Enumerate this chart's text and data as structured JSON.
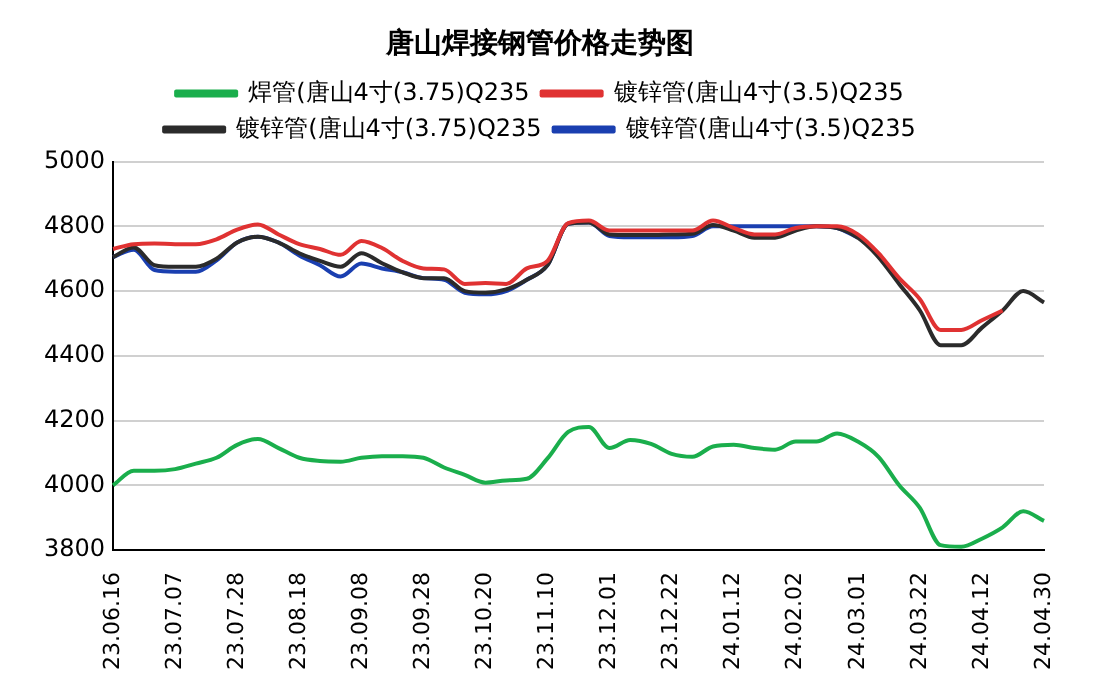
{
  "chart_data": {
    "type": "line",
    "title": "唐山焊接钢管价格走势图",
    "categories": [
      "23.06.16",
      null,
      null,
      "23.07.07",
      null,
      null,
      "23.07.28",
      null,
      null,
      "23.08.18",
      null,
      null,
      "23.09.08",
      null,
      null,
      "23.09.28",
      null,
      null,
      "23.10.20",
      null,
      null,
      "23.11.10",
      null,
      null,
      "23.12.01",
      null,
      null,
      "23.12.22",
      null,
      null,
      "24.01.12",
      null,
      null,
      "24.02.02",
      null,
      null,
      "24.03.01",
      null,
      null,
      "24.03.22",
      null,
      null,
      "24.04.12",
      null,
      null,
      "24.04.30"
    ],
    "series": [
      {
        "name": "焊管(唐山4寸(3.75)Q235",
        "color": "#1aae4c",
        "values": [
          4000,
          4045,
          4045,
          4050,
          4067,
          4085,
          4125,
          4143,
          4115,
          4085,
          4075,
          4073,
          4085,
          4090,
          4090,
          4085,
          4055,
          4032,
          4008,
          4015,
          4020,
          4083,
          4165,
          4180,
          4115,
          4140,
          4128,
          4097,
          4088,
          4120,
          4125,
          4115,
          4110,
          4135,
          4135,
          4160,
          4135,
          4088,
          4000,
          3930,
          3815,
          3810,
          3835,
          3870,
          3920,
          3890
        ]
      },
      {
        "name": "镀锌管(唐山4寸(3.5)Q235",
        "color": "#e03232",
        "values": [
          4730,
          4745,
          4747,
          4745,
          4745,
          4760,
          4790,
          4806,
          4775,
          4745,
          4730,
          4712,
          4755,
          4733,
          4693,
          4670,
          4667,
          4622,
          4625,
          4622,
          4670,
          4693,
          4810,
          4818,
          4787,
          4787,
          4787,
          4787,
          4787,
          4818,
          4795,
          4775,
          4775,
          4795,
          4800,
          4800,
          4775,
          4717,
          4640,
          4575,
          4480,
          4480,
          4510,
          4540,
          null,
          null
        ]
      },
      {
        "name": "镀锌管(唐山4寸(3.75)Q235",
        "color": "#2b2b2b",
        "values": [
          4705,
          4735,
          4680,
          4675,
          4675,
          4700,
          4750,
          4768,
          4750,
          4717,
          4693,
          4675,
          4717,
          4686,
          4658,
          4640,
          4640,
          4600,
          4595,
          4605,
          4635,
          4680,
          4808,
          4812,
          4775,
          4773,
          4773,
          4775,
          4777,
          4804,
          4787,
          4765,
          4765,
          4787,
          4800,
          4795,
          4765,
          4705,
          4622,
          4540,
          4433,
          4433,
          4487,
          4540,
          4600,
          4565
        ]
      },
      {
        "name": "镀锌管(唐山4寸(3.5)Q235",
        "color": "#1a3fb0",
        "values": [
          4705,
          4728,
          4665,
          4660,
          4660,
          4695,
          4750,
          4768,
          4750,
          4710,
          4680,
          4645,
          4685,
          4670,
          4658,
          4640,
          4635,
          4595,
          4590,
          4600,
          4635,
          4680,
          4808,
          4812,
          4770,
          4766,
          4766,
          4766,
          4770,
          4800,
          4800,
          4800,
          4800,
          4800,
          4800,
          4795,
          4765,
          null,
          null,
          null,
          null,
          null,
          null,
          null,
          null,
          null
        ]
      }
    ],
    "ylim": [
      3800,
      5000
    ],
    "yticks": [
      3800,
      4000,
      4200,
      4400,
      4600,
      4800,
      5000
    ],
    "grid": "y",
    "legend": "top",
    "marker": "none",
    "line_style": "solid"
  }
}
